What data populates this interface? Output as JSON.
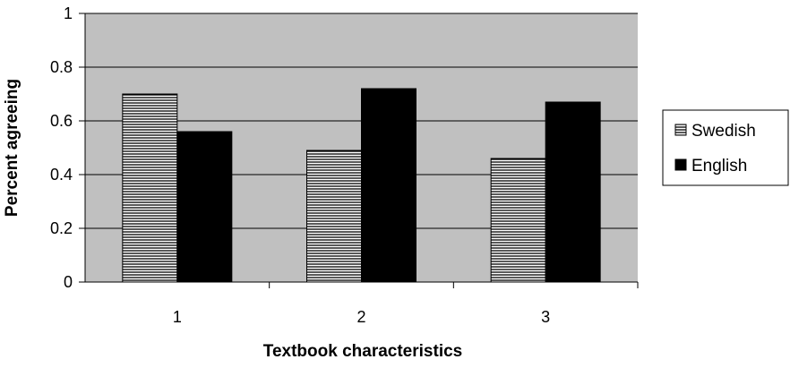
{
  "chart_data": {
    "type": "bar",
    "categories": [
      "1",
      "2",
      "3"
    ],
    "series": [
      {
        "name": "Swedish",
        "values": [
          0.7,
          0.49,
          0.46
        ],
        "fill": "hatched-horizontal"
      },
      {
        "name": "English",
        "values": [
          0.56,
          0.72,
          0.67
        ],
        "fill": "solid-black"
      }
    ],
    "xlabel": "Textbook characteristics",
    "ylabel": "Percent agreeing",
    "ylim": [
      0,
      1
    ],
    "yticks": [
      "0",
      "0.2",
      "0.4",
      "0.6",
      "0.8",
      "1"
    ],
    "grid": true,
    "legend_position": "right",
    "colors": {
      "plot_background": "#c0c0c0",
      "gridline": "#000000",
      "english_fill": "#000000",
      "swedish_fill": "#ffffff",
      "swedish_hatch": "#000000"
    }
  }
}
